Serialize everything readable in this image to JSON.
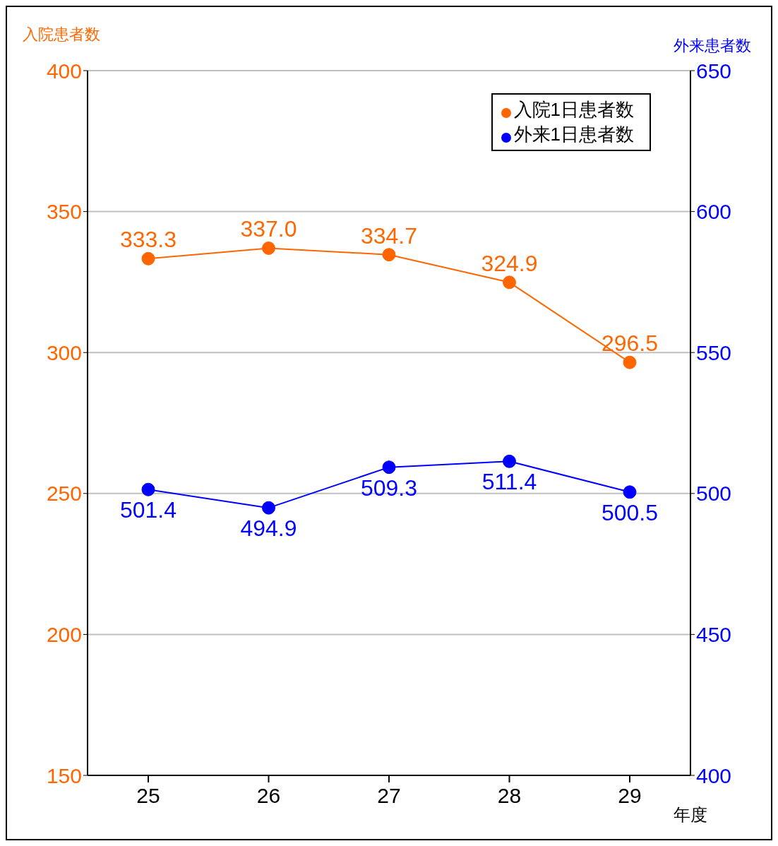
{
  "chart_data": {
    "type": "line",
    "ylabel": "入院患者数",
    "y2label": "外来患者数",
    "xlabel": "年度",
    "categories": [
      "25",
      "26",
      "27",
      "28",
      "29"
    ],
    "series": [
      {
        "name": "入院1日患者数",
        "color": "#ff6600",
        "values": [
          333.3,
          337.0,
          334.7,
          324.9,
          296.5
        ],
        "value_labels": [
          "333.3",
          "337.0",
          "334.7",
          "324.9",
          "296.5"
        ],
        "axis": "y"
      },
      {
        "name": "外来1日患者数",
        "color": "#0000ff",
        "values": [
          501.4,
          494.9,
          509.3,
          511.4,
          500.5
        ],
        "value_labels": [
          "501.4",
          "494.9",
          "509.3",
          "511.4",
          "500.5"
        ],
        "axis": "y2"
      }
    ],
    "ylim": [
      150,
      400
    ],
    "yticks": [
      150,
      200,
      250,
      300,
      350,
      400
    ],
    "y2lim": [
      400,
      650
    ],
    "y2ticks": [
      400,
      450,
      500,
      550,
      600,
      650
    ],
    "grid": "y",
    "legend": "top right",
    "marker": "circle",
    "line_style": "solid"
  }
}
